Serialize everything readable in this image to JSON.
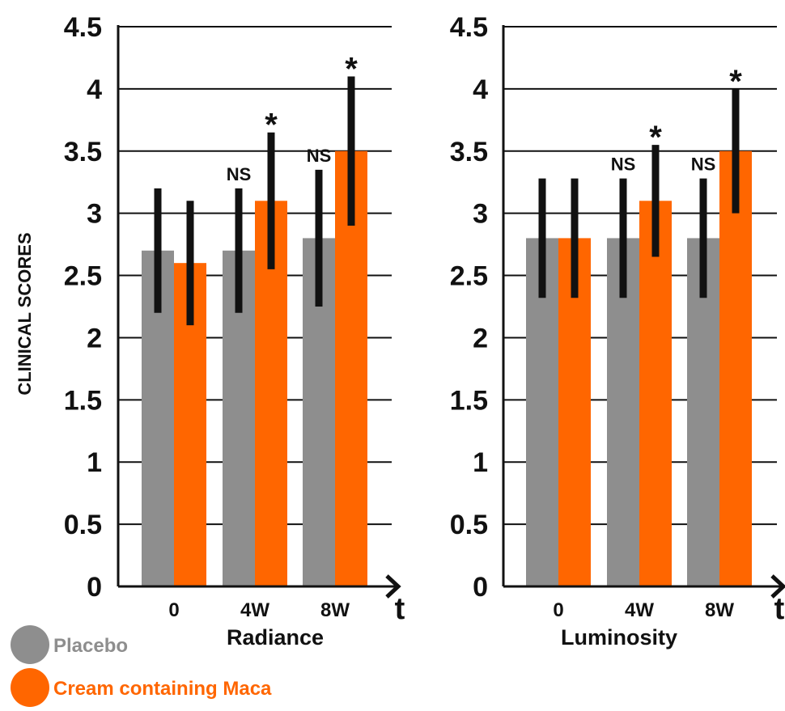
{
  "ylabel": "CLINICAL SCORES",
  "x_axis_symbol": "t",
  "colors": {
    "placebo": "#8e8e8e",
    "maca": "#ff6600",
    "errorbar": "#111111",
    "grid": "#111111"
  },
  "legend": [
    {
      "label": "Placebo",
      "color": "#8e8e8e"
    },
    {
      "label": "Cream containing Maca",
      "color": "#ff6600"
    }
  ],
  "chart_data": [
    {
      "type": "bar",
      "title": "",
      "xlabel": "Radiance",
      "ylabel": "CLINICAL SCORES",
      "ylim": [
        0,
        4.5
      ],
      "yticks": [
        "0",
        "0.5",
        "1",
        "1.5",
        "2",
        "2.5",
        "3",
        "3.5",
        "4",
        "4.5"
      ],
      "categories": [
        "0",
        "4W",
        "8W"
      ],
      "grid": true,
      "series": [
        {
          "name": "Placebo",
          "values": [
            2.7,
            2.7,
            2.8
          ],
          "err_low": [
            2.2,
            2.2,
            2.25
          ],
          "err_high": [
            3.2,
            3.2,
            3.35
          ]
        },
        {
          "name": "Cream containing Maca",
          "values": [
            2.6,
            3.1,
            3.5
          ],
          "err_low": [
            2.1,
            2.55,
            2.9
          ],
          "err_high": [
            3.1,
            3.65,
            4.1
          ]
        }
      ],
      "annotations": [
        {
          "category": "4W",
          "series": "Placebo",
          "text": "NS"
        },
        {
          "category": "4W",
          "series": "Cream containing Maca",
          "text": "*"
        },
        {
          "category": "8W",
          "series": "Placebo",
          "text": "NS"
        },
        {
          "category": "8W",
          "series": "Cream containing Maca",
          "text": "*"
        }
      ]
    },
    {
      "type": "bar",
      "title": "",
      "xlabel": "Luminosity",
      "ylabel": "",
      "ylim": [
        0,
        4.5
      ],
      "yticks": [
        "0",
        "0.5",
        "1",
        "1.5",
        "2",
        "2.5",
        "3",
        "3.5",
        "4",
        "4.5"
      ],
      "categories": [
        "0",
        "4W",
        "8W"
      ],
      "grid": true,
      "series": [
        {
          "name": "Placebo",
          "values": [
            2.8,
            2.8,
            2.8
          ],
          "err_low": [
            2.32,
            2.32,
            2.32
          ],
          "err_high": [
            3.28,
            3.28,
            3.28
          ]
        },
        {
          "name": "Cream containing Maca",
          "values": [
            2.8,
            3.1,
            3.5
          ],
          "err_low": [
            2.32,
            2.65,
            3.0
          ],
          "err_high": [
            3.28,
            3.55,
            4.0
          ]
        }
      ],
      "annotations": [
        {
          "category": "4W",
          "series": "Placebo",
          "text": "NS"
        },
        {
          "category": "4W",
          "series": "Cream containing Maca",
          "text": "*"
        },
        {
          "category": "8W",
          "series": "Placebo",
          "text": "NS"
        },
        {
          "category": "8W",
          "series": "Cream containing Maca",
          "text": "*"
        }
      ]
    }
  ]
}
